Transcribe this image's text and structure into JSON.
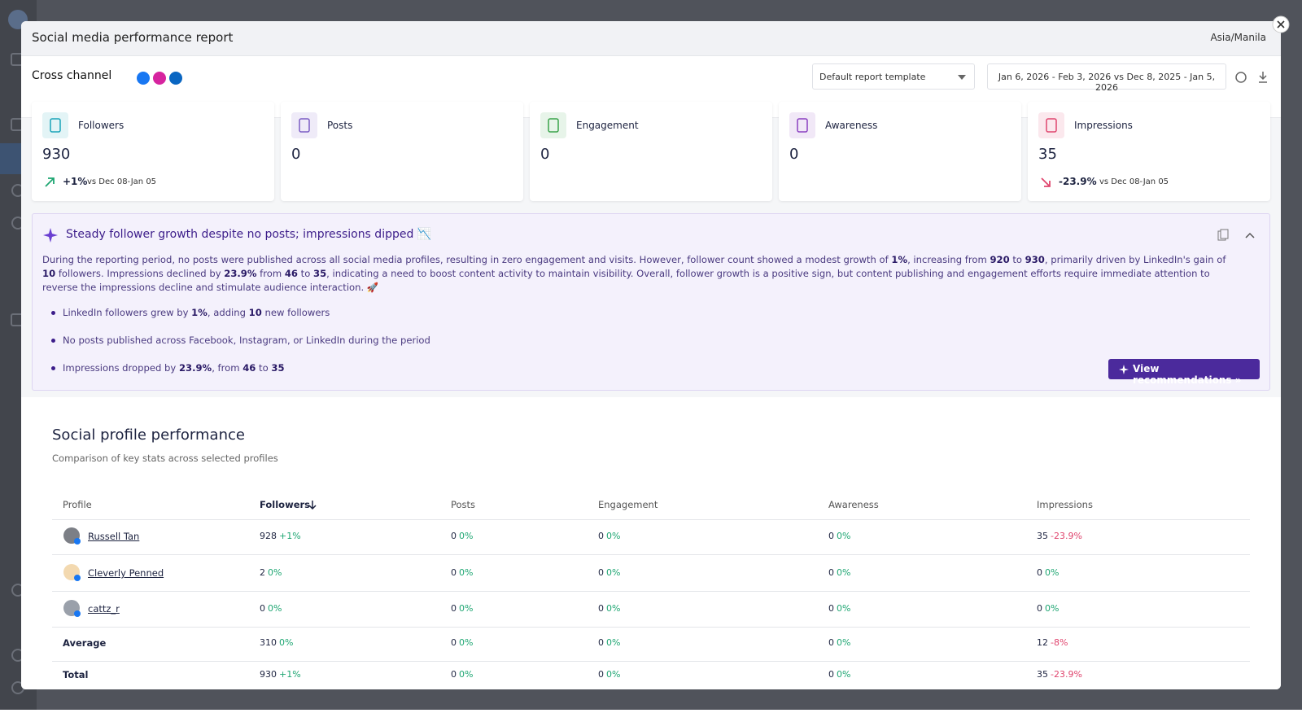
{
  "header": {
    "title": "Social media performance report",
    "timezone": "Asia/Manila"
  },
  "toolbar": {
    "channel": "Cross channel",
    "template": "Default report template",
    "date_range": "Jan 6, 2026 - Feb 3, 2026 vs Dec 8, 2025 - Jan 5, 2026"
  },
  "cards": [
    {
      "label": "Followers",
      "value": 930,
      "change": "+1%",
      "comparison": "vs Dec 08-Jan 05",
      "color": "#1aa3b8"
    },
    {
      "label": "Posts",
      "value": 0,
      "color": "#7b5cc4"
    },
    {
      "label": "Engagement",
      "value": 0,
      "color": "#3aa34a"
    },
    {
      "label": "Awareness",
      "value": 0,
      "color": "#8a3fc0"
    },
    {
      "label": "Impressions",
      "value": 35,
      "change": "-23.9%",
      "comparison": "vs Dec 08-Jan 05",
      "color": "#e0456e"
    }
  ],
  "summary": {
    "title": "Steady follower growth despite no posts; impressions dipped 📉",
    "paragraph": [
      {
        "text": "During the reporting period, no posts were published across all social media profiles, resulting in zero engagement and visits. However, follower count showed a modest growth of "
      },
      {
        "text": "1%",
        "bold": true
      },
      {
        "text": ", increasing from "
      },
      {
        "text": "920",
        "bold": true
      },
      {
        "text": " to "
      },
      {
        "text": "930",
        "bold": true
      },
      {
        "text": ", primarily driven by LinkedIn's gain of "
      },
      {
        "text": "10",
        "bold": true
      },
      {
        "text": " followers. Impressions declined by "
      },
      {
        "text": "23.9%",
        "bold": true
      },
      {
        "text": " from "
      },
      {
        "text": "46",
        "bold": true
      },
      {
        "text": " to "
      },
      {
        "text": "35",
        "bold": true
      },
      {
        "text": ", indicating a need to boost content activity to maintain visibility. Overall, follower growth is a positive sign, but content publishing and engagement efforts require immediate attention to reverse the impressions decline and stimulate audience interaction. 🚀"
      }
    ],
    "bullets": [
      [
        {
          "text": "LinkedIn followers grew by "
        },
        {
          "text": "1%",
          "bold": true
        },
        {
          "text": ", adding "
        },
        {
          "text": "10",
          "bold": true
        },
        {
          "text": " new followers"
        }
      ],
      [
        {
          "text": "No posts published across Facebook, Instagram, or LinkedIn during the period"
        }
      ],
      [
        {
          "text": "Impressions dropped by "
        },
        {
          "text": "23.9%",
          "bold": true
        },
        {
          "text": ", from "
        },
        {
          "text": "46",
          "bold": true
        },
        {
          "text": " to "
        },
        {
          "text": "35",
          "bold": true
        }
      ]
    ],
    "button": "View recommendations »"
  },
  "table": {
    "title": "Social profile performance",
    "subtitle": "Comparison of key stats across selected profiles",
    "columns": [
      "Profile",
      "Followers",
      "Posts",
      "Engagement",
      "Awareness",
      "Impressions"
    ],
    "rows": [
      {
        "profile": "Russell Tan",
        "link": true,
        "cells": [
          {
            "value": 928,
            "change": "+1%"
          },
          {
            "value": 0,
            "change": "0%"
          },
          {
            "value": 0,
            "change": "0%"
          },
          {
            "value": 0,
            "change": "0%"
          },
          {
            "value": 35,
            "change": "-23.9%"
          }
        ]
      },
      {
        "profile": "Cleverly Penned",
        "link": true,
        "cells": [
          {
            "value": 2,
            "change": "0%"
          },
          {
            "value": 0,
            "change": "0%"
          },
          {
            "value": 0,
            "change": "0%"
          },
          {
            "value": 0,
            "change": "0%"
          },
          {
            "value": 0,
            "change": "0%"
          }
        ]
      },
      {
        "profile": "cattz_r",
        "link": true,
        "cells": [
          {
            "value": 0,
            "change": "0%"
          },
          {
            "value": 0,
            "change": "0%"
          },
          {
            "value": 0,
            "change": "0%"
          },
          {
            "value": 0,
            "change": "0%"
          },
          {
            "value": 0,
            "change": "0%"
          }
        ]
      },
      {
        "profile": "Average",
        "cells": [
          {
            "value": 310,
            "change": "0%"
          },
          {
            "value": 0,
            "change": "0%"
          },
          {
            "value": 0,
            "change": "0%"
          },
          {
            "value": 0,
            "change": "0%"
          },
          {
            "value": 12,
            "change": "-8%"
          }
        ]
      },
      {
        "profile": "Total",
        "cells": [
          {
            "value": 930,
            "change": "+1%"
          },
          {
            "value": 0,
            "change": "0%"
          },
          {
            "value": 0,
            "change": "0%"
          },
          {
            "value": 0,
            "change": "0%"
          },
          {
            "value": 35,
            "change": "-23.9%"
          }
        ]
      }
    ]
  }
}
